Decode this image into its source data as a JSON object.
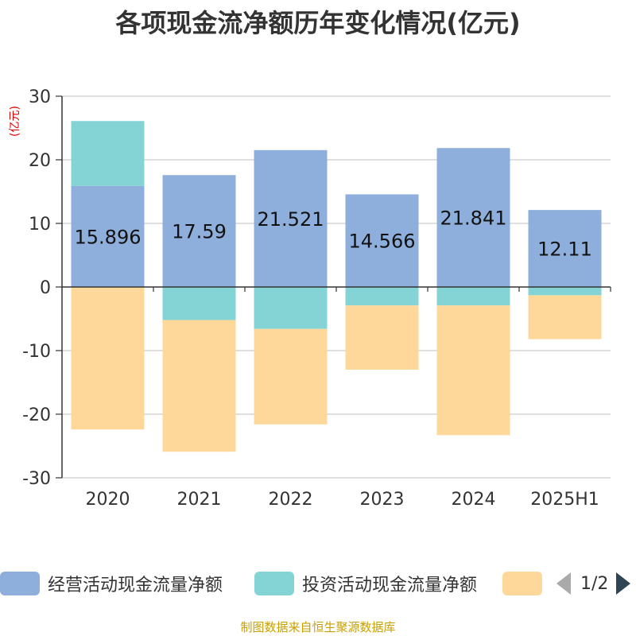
{
  "title": "各项现金流净额历年变化情况(亿元)",
  "unit_label": "(亿元)",
  "source": "制图数据来自恒生聚源数据库",
  "pager": {
    "text": "1/2"
  },
  "colors": {
    "operating": "#8eaedb",
    "investing": "#84d4d6",
    "financing": "#fed89a",
    "grid": "#cccccc",
    "axis": "#333333",
    "unit": "#e00000",
    "source": "#c8a000"
  },
  "chart_data": {
    "type": "bar",
    "stacked": true,
    "title": "各项现金流净额历年变化情况(亿元)",
    "ylabel": "(亿元)",
    "xlabel": "",
    "categories": [
      "2020",
      "2021",
      "2022",
      "2023",
      "2024",
      "2025H1"
    ],
    "ylim": [
      -30,
      30
    ],
    "yticks": [
      30,
      20,
      10,
      0,
      -10,
      -20,
      -30
    ],
    "grid": true,
    "legend_position": "bottom",
    "series": [
      {
        "name": "经营活动现金流量净额",
        "values": [
          15.896,
          17.59,
          21.521,
          14.566,
          21.841,
          12.11
        ],
        "show_labels": true
      },
      {
        "name": "投资活动现金流量净额",
        "values": [
          10.2,
          -5.2,
          -6.6,
          -2.9,
          -2.9,
          -1.3
        ],
        "show_labels": false
      },
      {
        "name": "",
        "values": [
          -22.4,
          -20.7,
          -15.0,
          -10.1,
          -20.4,
          -6.9
        ],
        "show_labels": false
      }
    ]
  }
}
